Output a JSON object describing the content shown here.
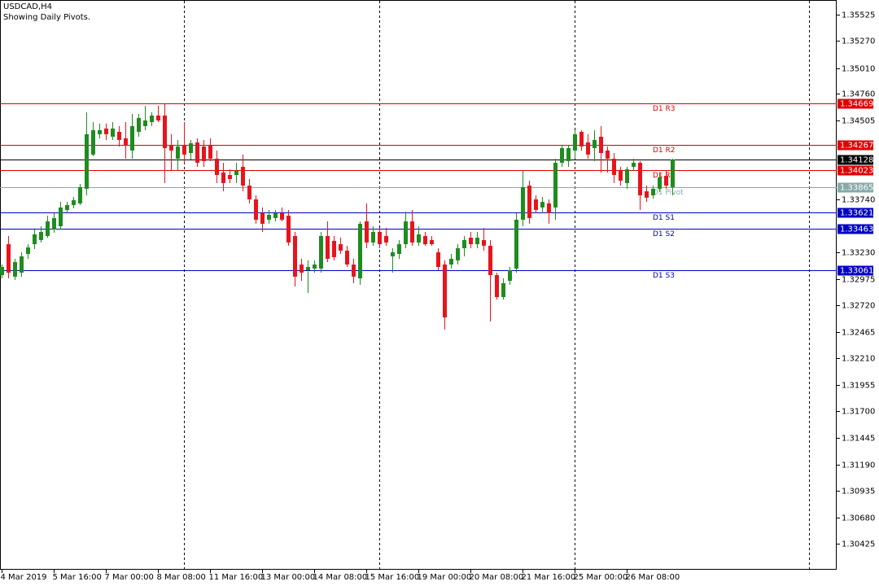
{
  "chart_data": {
    "type": "candlestick",
    "title": "USDCAD,H4",
    "subtitle": "Showing Daily Pivots.",
    "categories": [
      null,
      null,
      "4 Mar 2019",
      null,
      null,
      null,
      null,
      null,
      null,
      null,
      "5 Mar 16:00",
      null,
      null,
      null,
      null,
      null,
      null,
      null,
      "7 Mar 00:00",
      null,
      null,
      null,
      null,
      null,
      null,
      null,
      "8 Mar 08:00",
      null,
      null,
      null,
      null,
      null,
      null,
      null,
      "11 Mar 16:00",
      null,
      null,
      null,
      null,
      null,
      null,
      null,
      "13 Mar 00:00",
      null,
      null,
      null,
      null,
      null,
      null,
      null,
      "14 Mar 08:00",
      null,
      null,
      null,
      null,
      null,
      null,
      null,
      "15 Mar 16:00",
      null,
      null,
      null,
      null,
      null,
      null,
      null,
      "19 Mar 00:00",
      null,
      null,
      null,
      null,
      null,
      null,
      null,
      "20 Mar 08:00",
      null,
      null,
      null,
      null,
      null,
      null,
      null,
      "21 Mar 16:00",
      null,
      null,
      null,
      null,
      null,
      null,
      null,
      "25 Mar 00:00",
      null,
      null,
      null,
      null,
      null,
      null,
      null,
      "26 Mar 08:00",
      null,
      null,
      null,
      null,
      null,
      null,
      null
    ],
    "open": [
      1.33038,
      1.32959,
      1.33014,
      1.33312,
      1.32999,
      1.33038,
      1.33218,
      1.33312,
      1.33352,
      1.33391,
      1.33454,
      1.33485,
      1.33642,
      1.33689,
      1.33705,
      1.33846,
      1.34176,
      1.34372,
      1.34427,
      1.34348,
      1.34395,
      1.34332,
      1.34215,
      1.34395,
      1.3445,
      1.34489,
      1.34552,
      1.34552,
      1.3427,
      1.34136,
      1.3427,
      1.34191,
      1.34293,
      1.34254,
      1.3427,
      1.34136,
      1.34003,
      1.33979,
      1.33979,
      1.34058,
      1.33877,
      1.33744,
      1.33611,
      1.33548,
      1.33564,
      1.33611,
      1.33587,
      1.33391,
      1.33116,
      1.33061,
      1.33077,
      1.33077,
      1.33391,
      1.33344,
      1.33312,
      1.3325,
      1.33116,
      1.32983,
      1.33532,
      1.33328,
      1.3343,
      1.33391,
      1.33195,
      1.33218,
      1.33312,
      1.33532,
      1.33328,
      1.33391,
      1.33352,
      1.33234,
      1.33116,
      1.33116,
      1.33156,
      1.33273,
      1.33375,
      1.33312,
      1.33352,
      1.33297,
      1.33014,
      1.32802,
      1.32959,
      1.33077,
      1.33548,
      1.33877,
      1.33744,
      1.33666,
      1.33705,
      1.33666,
      1.34097,
      1.34113,
      1.34215,
      1.34395,
      1.34293,
      1.34238,
      1.34348,
      1.34215,
      1.34136,
      1.34019,
      1.33901,
      1.34058,
      1.34097,
      1.33822,
      1.33783,
      1.33846,
      1.33971,
      1.33862
    ],
    "high": [
      1.33093,
      1.33077,
      1.33116,
      1.33391,
      1.33171,
      1.33234,
      1.33312,
      1.33454,
      1.33485,
      1.33587,
      1.33611,
      1.3372,
      1.3372,
      1.33767,
      1.33893,
      1.34583,
      1.34489,
      1.34474,
      1.34474,
      1.34489,
      1.3445,
      1.34489,
      1.34568,
      1.34568,
      1.34646,
      1.34583,
      1.34646,
      1.34662,
      1.34372,
      1.34317,
      1.34489,
      1.34317,
      1.34332,
      1.34317,
      1.34332,
      1.34215,
      1.34097,
      1.34034,
      1.34097,
      1.34176,
      1.3394,
      1.33783,
      1.33666,
      1.33642,
      1.33642,
      1.33666,
      1.33642,
      1.3343,
      1.33171,
      1.33156,
      1.33156,
      1.3343,
      1.33532,
      1.33391,
      1.33375,
      1.33297,
      1.33171,
      1.33532,
      1.33705,
      1.33485,
      1.33469,
      1.33469,
      1.33273,
      1.33352,
      1.33626,
      1.33642,
      1.33485,
      1.3343,
      1.33391,
      1.33273,
      1.33156,
      1.33218,
      1.33312,
      1.33391,
      1.3343,
      1.3343,
      1.33469,
      1.33352,
      1.33038,
      1.32983,
      1.33093,
      1.33611,
      1.34019,
      1.33924,
      1.33783,
      1.33767,
      1.33744,
      1.34136,
      1.3427,
      1.3427,
      1.34411,
      1.34411,
      1.34372,
      1.34411,
      1.3445,
      1.34254,
      1.34191,
      1.34058,
      1.34058,
      1.34136,
      1.34113,
      1.33877,
      1.33877,
      1.34003,
      1.34019,
      1.34136
    ],
    "low": [
      1.32904,
      1.3292,
      1.32983,
      1.32983,
      1.32967,
      1.32999,
      1.33171,
      1.33265,
      1.33328,
      1.33375,
      1.33422,
      1.33454,
      1.33611,
      1.33658,
      1.33689,
      1.33783,
      1.3416,
      1.34332,
      1.34317,
      1.34317,
      1.34254,
      1.34136,
      1.34136,
      1.34348,
      1.34411,
      1.3445,
      1.34489,
      1.33901,
      1.34019,
      1.34019,
      1.34097,
      1.34128,
      1.34058,
      1.34058,
      1.34113,
      1.33901,
      1.33822,
      1.33901,
      1.33901,
      1.33822,
      1.33705,
      1.33509,
      1.3343,
      1.33509,
      1.33532,
      1.33532,
      1.33297,
      1.32904,
      1.32959,
      1.32842,
      1.33038,
      1.33038,
      1.3314,
      1.33156,
      1.33218,
      1.33093,
      1.32936,
      1.3292,
      1.33273,
      1.33297,
      1.33273,
      1.33297,
      1.33038,
      1.33171,
      1.33273,
      1.33297,
      1.33297,
      1.33297,
      1.33297,
      1.33061,
      1.32489,
      1.33077,
      1.33116,
      1.33195,
      1.33273,
      1.33273,
      1.3325,
      1.32567,
      1.32779,
      1.32779,
      1.3292,
      1.33038,
      1.33485,
      1.33509,
      1.33611,
      1.33611,
      1.33509,
      1.33548,
      1.34058,
      1.34058,
      1.34136,
      1.34215,
      1.34136,
      1.34113,
      1.34003,
      1.34003,
      1.33901,
      1.33877,
      1.33846,
      1.34019,
      1.33642,
      1.3372,
      1.33752,
      1.33815,
      1.33846,
      1.33783
    ],
    "close": [
      1.32959,
      1.33038,
      1.33093,
      1.33038,
      1.3314,
      1.33195,
      1.33281,
      1.33407,
      1.3343,
      1.33532,
      1.33564,
      1.33666,
      1.33689,
      1.33736,
      1.33862,
      1.34372,
      1.34411,
      1.34411,
      1.34372,
      1.34427,
      1.34317,
      1.3427,
      1.3445,
      1.34529,
      1.34505,
      1.34552,
      1.34505,
      1.34238,
      1.34215,
      1.34254,
      1.34176,
      1.34285,
      1.34097,
      1.34113,
      1.34136,
      1.33979,
      1.33901,
      1.3394,
      1.34019,
      1.33877,
      1.33744,
      1.33548,
      1.33509,
      1.33595,
      1.33611,
      1.33548,
      1.33328,
      1.32999,
      1.33038,
      1.33093,
      1.33116,
      1.33391,
      1.33171,
      1.33187,
      1.3325,
      1.33116,
      1.32999,
      1.33509,
      1.33328,
      1.3343,
      1.33312,
      1.33328,
      1.33234,
      1.33312,
      1.33532,
      1.33328,
      1.33407,
      1.33312,
      1.33312,
      1.33093,
      1.32606,
      1.33171,
      1.33273,
      1.33352,
      1.33312,
      1.33375,
      1.33297,
      1.33014,
      1.32802,
      1.32936,
      1.33061,
      1.33548,
      1.33862,
      1.33564,
      1.33642,
      1.3372,
      1.33611,
      1.34097,
      1.34238,
      1.34238,
      1.34372,
      1.34254,
      1.34176,
      1.34317,
      1.34191,
      1.34136,
      1.33979,
      1.33924,
      1.34034,
      1.34097,
      1.33783,
      1.3376,
      1.33846,
      1.33956,
      1.33877,
      1.34128
    ],
    "up_color": "#1e8c1e",
    "down_color": "#e8141c",
    "levels": [
      {
        "label": "D1 R3",
        "value": 1.34669,
        "color": "#e00000"
      },
      {
        "label": "D1 R2",
        "value": 1.34267,
        "color": "#e00000"
      },
      {
        "label": "D1 R1",
        "value": 1.34023,
        "color": "#e00000"
      },
      {
        "label": "D1 Pivot",
        "value": 1.33865,
        "color": "#86aaa8"
      },
      {
        "label": "D1 S1",
        "value": 1.33621,
        "color": "#0000c8"
      },
      {
        "label": "D1 S2",
        "value": 1.33463,
        "color": "#0000c8"
      },
      {
        "label": "D1 S3",
        "value": 1.33061,
        "color": "#0000c8"
      }
    ],
    "bid": 1.34128,
    "bid_color": "#000000",
    "ylim": [
      1.30174,
      1.35666
    ],
    "yticks": [
      1.35525,
      {
        "value": 1.3527,
        "label": "1.35270"
      },
      {
        "value": 1.3501,
        "label": "1.35010"
      },
      {
        "value": 1.3476,
        "label": "1.34760"
      },
      1.34505,
      {
        "value": 1.3374,
        "label": "1.33740"
      },
      {
        "value": 1.3323,
        "label": "1.33230"
      },
      1.32975,
      {
        "value": 1.3272,
        "label": "1.32720"
      },
      1.32465,
      {
        "value": 1.3221,
        "label": "1.32210"
      },
      1.31955,
      {
        "value": 1.317,
        "label": "1.31700"
      },
      1.31445,
      {
        "value": 1.3119,
        "label": "1.31190"
      },
      1.30935,
      {
        "value": 1.3068,
        "label": "1.30680"
      },
      1.30425
    ]
  }
}
